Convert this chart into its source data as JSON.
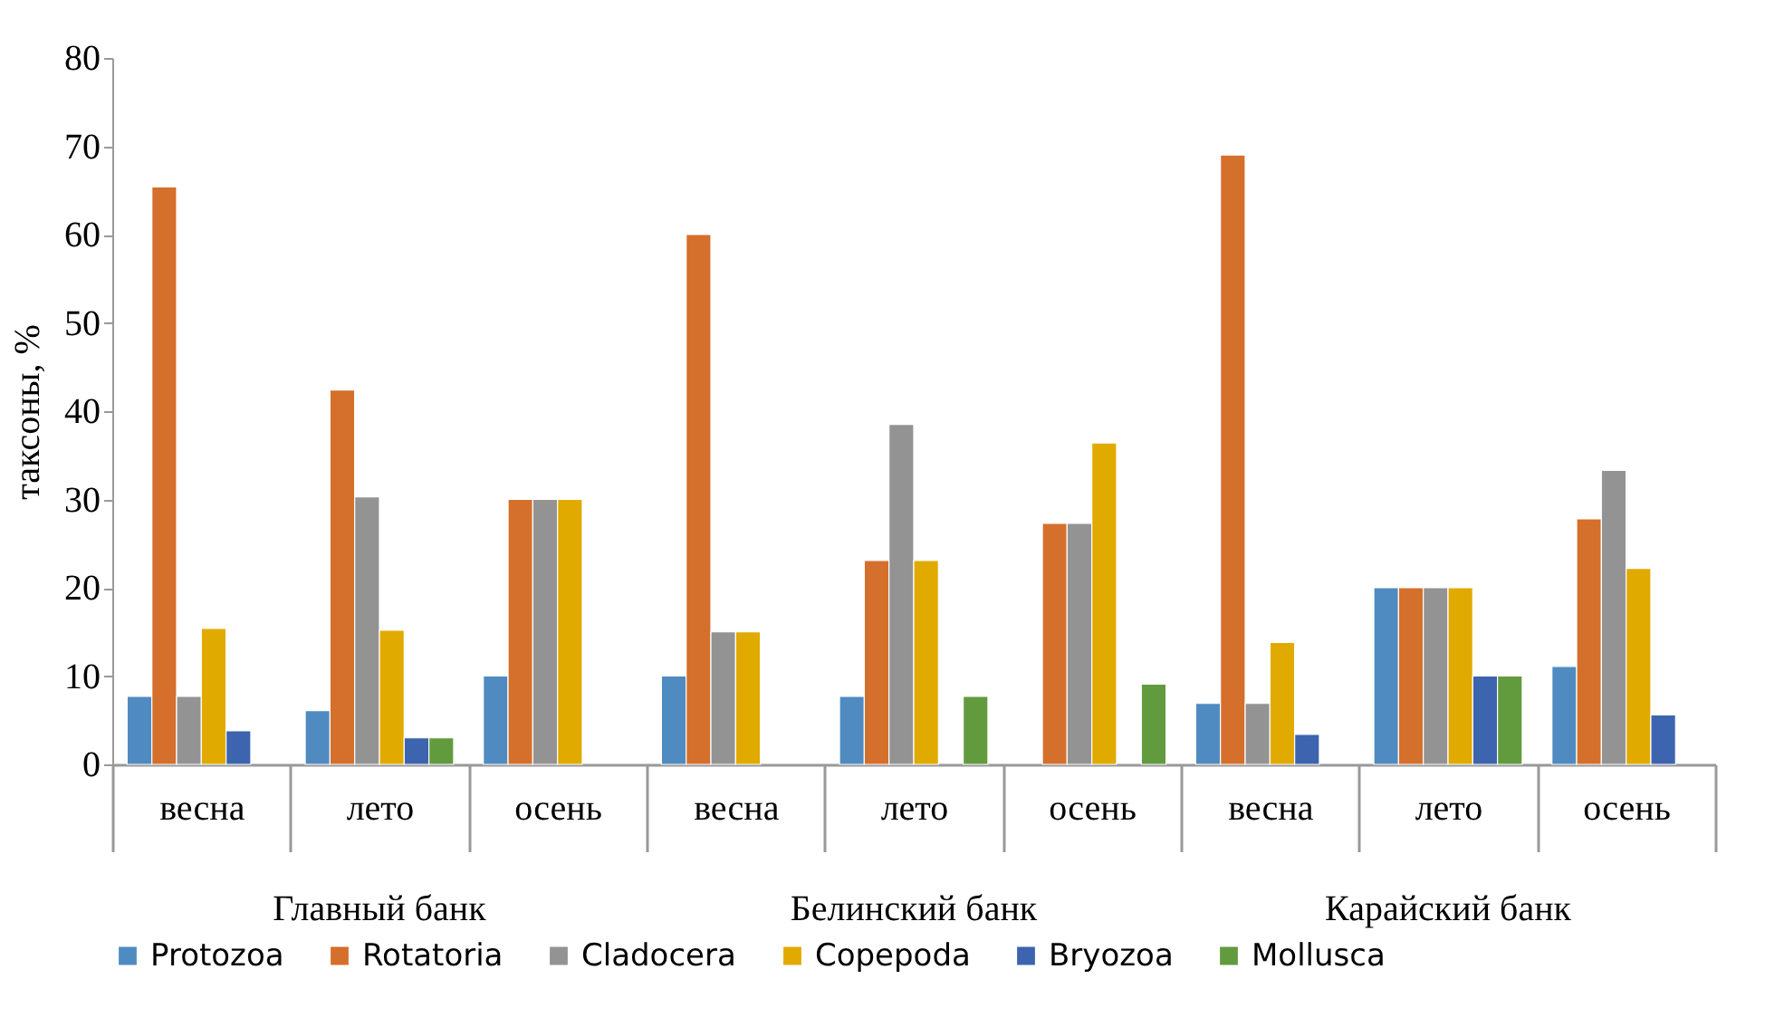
{
  "chart_data": {
    "type": "bar",
    "ylabel": "таксоны, %",
    "categories": [
      "весна",
      "лето",
      "осень",
      "весна",
      "лето",
      "осень",
      "весна",
      "лето",
      "осень"
    ],
    "annotations": [
      "Главный банк",
      "Белинский банк",
      "Карайский банк"
    ],
    "series": [
      {
        "name": "Protozoa",
        "color": "#4f8bc0",
        "values": [
          7.7,
          6.1,
          10,
          10,
          7.7,
          null,
          6.9,
          20,
          11.1
        ]
      },
      {
        "name": "Rotatoria",
        "color": "#d46f2c",
        "values": [
          65.4,
          42.4,
          30,
          60,
          23.1,
          27.3,
          69,
          20,
          27.8
        ]
      },
      {
        "name": "Cladocera",
        "color": "#939393",
        "values": [
          7.7,
          30.3,
          30,
          15,
          38.5,
          27.3,
          6.9,
          20,
          33.3
        ]
      },
      {
        "name": "Copepoda",
        "color": "#e1aa00",
        "values": [
          15.4,
          15.2,
          30,
          15,
          23.1,
          36.4,
          13.8,
          20,
          22.2
        ]
      },
      {
        "name": "Bryozoa",
        "color": "#3d64ae",
        "values": [
          3.8,
          3,
          null,
          null,
          null,
          null,
          3.4,
          10,
          5.6
        ]
      },
      {
        "name": "Mollusca",
        "color": "#629b3e",
        "values": [
          null,
          3,
          null,
          null,
          7.7,
          9.1,
          null,
          10,
          null
        ]
      }
    ],
    "ylim": [
      0,
      80
    ],
    "yticks": [
      0,
      10,
      20,
      30,
      40,
      50,
      60,
      70,
      80
    ],
    "grid": false,
    "legend": "bottom"
  }
}
